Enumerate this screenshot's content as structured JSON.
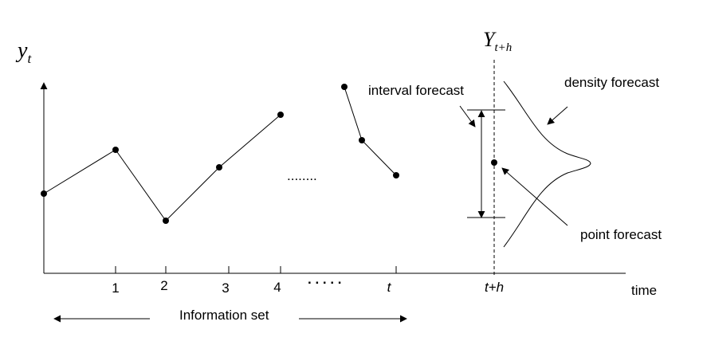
{
  "labels": {
    "y_axis_main": "y",
    "y_axis_sub": "t",
    "future_main": "Y",
    "future_sub": "t+h",
    "interval_forecast": "interval forecast",
    "density_forecast": "density forecast",
    "point_forecast": "point forecast",
    "time": "time",
    "information_set": "Information set"
  },
  "ticks": [
    "1",
    "2",
    "3",
    "4",
    "t",
    "t+h"
  ],
  "ellipsis_dots": "........",
  "ellipsis_axis": ". . . . .",
  "colors": {
    "line": "#000000",
    "background": "#ffffff"
  }
}
